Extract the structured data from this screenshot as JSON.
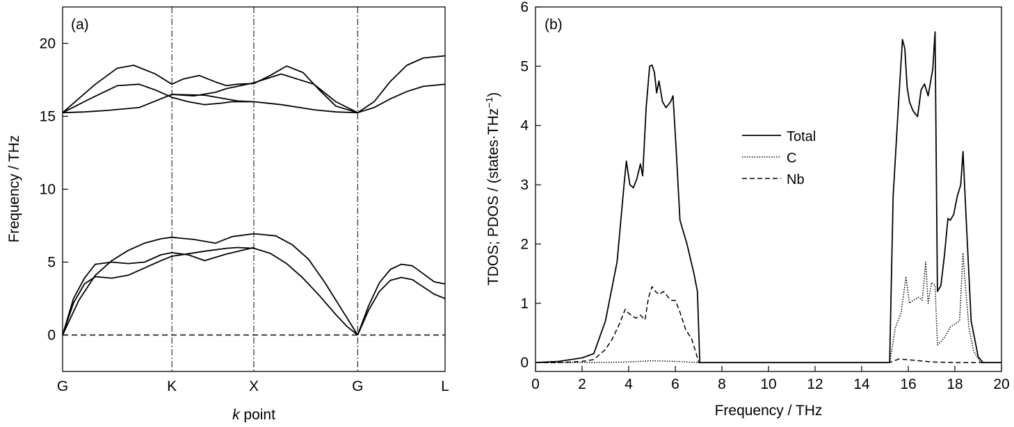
{
  "chart_data": [
    {
      "panel_label": "(a)",
      "type": "line",
      "xlabel_italic": "k",
      "xlabel_rest": " point",
      "ylabel": "Frequency / THz",
      "ylim": [
        -2.5,
        22.5
      ],
      "yticks": [
        0,
        5,
        10,
        15,
        20
      ],
      "xlim": [
        0,
        3.5
      ],
      "kpoints": [
        {
          "label": "G",
          "x": 0
        },
        {
          "label": "K",
          "x": 1
        },
        {
          "label": "X",
          "x": 1.75
        },
        {
          "label": "G",
          "x": 2.7
        },
        {
          "label": "L",
          "x": 3.5
        }
      ],
      "zero_line": 0,
      "series": [
        {
          "x": [
            0,
            0.2,
            0.4,
            0.7,
            1.0,
            1.3,
            1.6,
            1.75,
            2.0,
            2.3,
            2.5,
            2.7
          ],
          "values": [
            15.25,
            15.3,
            15.4,
            15.6,
            16.5,
            16.45,
            16.05,
            16.0,
            15.8,
            15.45,
            15.3,
            15.25
          ]
        },
        {
          "x": [
            0,
            0.25,
            0.5,
            0.7,
            0.85,
            1.0,
            1.15,
            1.3,
            1.45,
            1.55,
            1.75
          ],
          "values": [
            15.25,
            16.2,
            17.1,
            17.2,
            16.8,
            16.3,
            16.0,
            15.8,
            15.9,
            16.0,
            16.0
          ]
        },
        {
          "x": [
            1.0,
            1.2,
            1.4,
            1.5,
            1.6,
            1.75,
            2.0,
            2.3,
            2.5,
            2.7
          ],
          "values": [
            16.5,
            16.4,
            16.65,
            16.9,
            17.05,
            17.3,
            17.9,
            17.2,
            16.0,
            15.25
          ]
        },
        {
          "x": [
            0,
            0.3,
            0.5,
            0.65,
            0.85,
            1.0,
            1.1,
            1.25,
            1.4,
            1.5,
            1.6,
            1.75,
            1.9,
            2.05,
            2.2,
            2.35,
            2.5,
            2.7
          ],
          "values": [
            15.25,
            17.2,
            18.3,
            18.5,
            17.9,
            17.2,
            17.55,
            17.8,
            17.35,
            17.1,
            17.2,
            17.25,
            17.8,
            18.45,
            18.0,
            16.8,
            15.7,
            15.25
          ]
        },
        {
          "x": [
            2.7,
            2.85,
            3.0,
            3.15,
            3.3,
            3.5
          ],
          "values": [
            15.25,
            15.6,
            16.2,
            16.7,
            17.05,
            17.2
          ]
        },
        {
          "x": [
            2.7,
            2.85,
            3.0,
            3.15,
            3.3,
            3.5
          ],
          "values": [
            15.25,
            16.0,
            17.4,
            18.5,
            19.0,
            19.15
          ]
        },
        {
          "x": [
            0,
            0.1,
            0.2,
            0.3,
            0.45,
            0.6,
            0.75,
            0.9,
            1.0,
            1.3,
            1.5,
            1.6,
            1.75,
            1.9,
            2.05,
            2.2,
            2.35,
            2.5,
            2.6,
            2.7
          ],
          "values": [
            0,
            2.2,
            3.5,
            4.0,
            3.9,
            4.1,
            4.6,
            5.1,
            5.4,
            5.75,
            5.95,
            6.0,
            5.95,
            5.6,
            4.9,
            3.9,
            2.7,
            1.4,
            0.6,
            0
          ]
        },
        {
          "x": [
            0,
            0.1,
            0.2,
            0.3,
            0.45,
            0.6,
            0.75,
            0.9,
            1.0,
            1.15,
            1.3,
            1.5,
            1.75
          ],
          "values": [
            0,
            2.5,
            3.9,
            4.85,
            5.0,
            4.9,
            5.0,
            5.5,
            5.65,
            5.5,
            5.1,
            5.55,
            6.0
          ]
        },
        {
          "x": [
            0,
            0.15,
            0.3,
            0.45,
            0.6,
            0.75,
            0.9,
            1.0,
            1.2,
            1.4,
            1.55,
            1.75,
            1.95,
            2.1,
            2.25,
            2.4,
            2.55,
            2.7
          ],
          "values": [
            0,
            2.4,
            4.1,
            5.1,
            5.8,
            6.3,
            6.6,
            6.7,
            6.55,
            6.3,
            6.75,
            6.95,
            6.8,
            6.2,
            5.2,
            3.6,
            1.8,
            0
          ]
        },
        {
          "x": [
            2.7,
            2.8,
            2.9,
            3.0,
            3.1,
            3.2,
            3.3,
            3.4,
            3.5
          ],
          "values": [
            0,
            1.7,
            3.0,
            3.75,
            3.95,
            3.8,
            3.3,
            2.8,
            2.5
          ]
        },
        {
          "x": [
            2.7,
            2.8,
            2.9,
            3.0,
            3.1,
            3.2,
            3.3,
            3.4,
            3.5
          ],
          "values": [
            0,
            2.0,
            3.6,
            4.5,
            4.85,
            4.75,
            4.2,
            3.65,
            3.5
          ]
        }
      ]
    },
    {
      "panel_label": "(b)",
      "type": "line",
      "xlabel": "Frequency / THz",
      "ylabel": "TDOS; PDOS / (states·THz",
      "ylabel_sup": "−1",
      "ylabel_end": ")",
      "xlim": [
        0,
        20
      ],
      "ylim": [
        -0.15,
        6
      ],
      "xticks": [
        0,
        2,
        4,
        6,
        8,
        10,
        12,
        14,
        16,
        18,
        20
      ],
      "yticks": [
        0,
        1,
        2,
        3,
        4,
        5,
        6
      ],
      "legend_position": "upper-middle",
      "series": [
        {
          "name": "Total",
          "style": "solid",
          "x": [
            0,
            1.0,
            2.0,
            2.5,
            3.0,
            3.5,
            3.8,
            3.9,
            4.05,
            4.2,
            4.35,
            4.5,
            4.6,
            4.75,
            4.9,
            5.0,
            5.1,
            5.2,
            5.3,
            5.45,
            5.6,
            5.8,
            5.9,
            6.05,
            6.2,
            6.5,
            6.8,
            6.95,
            7.05,
            15.2,
            15.35,
            15.6,
            15.75,
            15.85,
            15.95,
            16.05,
            16.2,
            16.4,
            16.55,
            16.7,
            16.85,
            17.05,
            17.15,
            17.25,
            17.4,
            17.55,
            17.7,
            17.8,
            17.95,
            18.1,
            18.25,
            18.35,
            18.45,
            18.7,
            19.0,
            19.2,
            20.0
          ],
          "values": [
            0,
            0.02,
            0.08,
            0.15,
            0.7,
            1.7,
            3.0,
            3.4,
            3.0,
            2.95,
            3.1,
            3.35,
            3.15,
            4.3,
            5.0,
            5.02,
            4.9,
            4.55,
            4.75,
            4.4,
            4.3,
            4.4,
            4.5,
            3.5,
            2.4,
            2.0,
            1.5,
            1.2,
            0,
            0,
            2.8,
            4.5,
            5.45,
            5.3,
            4.65,
            4.4,
            4.25,
            4.15,
            4.6,
            4.7,
            4.5,
            4.95,
            5.58,
            1.2,
            1.3,
            1.8,
            2.43,
            2.4,
            2.5,
            2.8,
            3.0,
            3.56,
            2.7,
            0.7,
            0.1,
            0,
            0
          ]
        },
        {
          "name": "C",
          "style": "dotted",
          "x": [
            0,
            2.5,
            4.0,
            5.0,
            6.0,
            7.0,
            15.2,
            15.45,
            15.7,
            15.9,
            16.05,
            16.2,
            16.45,
            16.6,
            16.75,
            16.85,
            17.0,
            17.15,
            17.25,
            17.4,
            17.6,
            17.8,
            18.0,
            18.2,
            18.35,
            18.45,
            18.6,
            18.8,
            19.1,
            20.0
          ],
          "values": [
            0,
            0,
            0.01,
            0.03,
            0.02,
            0,
            0,
            0.6,
            0.85,
            1.45,
            1.0,
            1.05,
            1.1,
            1.05,
            1.7,
            1.0,
            1.35,
            1.3,
            0.3,
            0.35,
            0.45,
            0.6,
            0.65,
            0.7,
            1.85,
            1.3,
            0.6,
            0.2,
            0,
            0
          ]
        },
        {
          "name": "Nb",
          "style": "dashed",
          "x": [
            0,
            1.0,
            2.0,
            2.5,
            3.0,
            3.3,
            3.6,
            3.85,
            3.95,
            4.1,
            4.3,
            4.5,
            4.7,
            4.85,
            5.0,
            5.15,
            5.3,
            5.5,
            5.7,
            5.85,
            6.0,
            6.2,
            6.45,
            6.7,
            6.9,
            7.0,
            15.2,
            15.6,
            16.5,
            17.0,
            18.0,
            19.0,
            20.0
          ],
          "values": [
            0,
            0,
            0.02,
            0.05,
            0.22,
            0.4,
            0.65,
            0.9,
            0.85,
            0.8,
            0.75,
            0.8,
            0.72,
            1.1,
            1.28,
            1.2,
            1.15,
            1.2,
            1.1,
            1.05,
            1.05,
            0.85,
            0.55,
            0.4,
            0.15,
            0,
            0,
            0.06,
            0.03,
            0.01,
            0,
            0,
            0
          ]
        }
      ]
    }
  ]
}
